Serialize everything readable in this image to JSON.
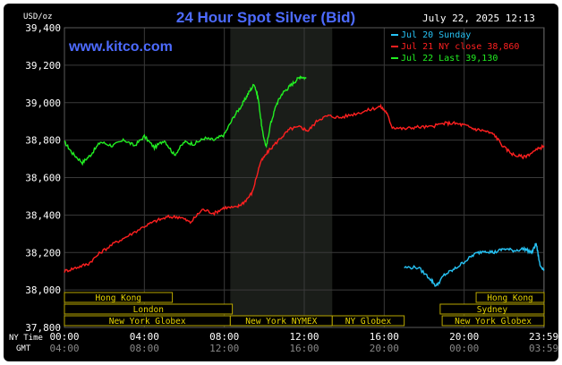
{
  "chart_data": {
    "type": "line",
    "title": "24 Hour Spot Silver (Bid)",
    "unit_label": "USD/oz",
    "date_label": "July 22, 2025 12:13",
    "brand": "www.kitco.com",
    "ylim": [
      37800,
      39400
    ],
    "y_ticks": [
      "39,400",
      "39,200",
      "39,000",
      "38,800",
      "38,600",
      "38,400",
      "38,200",
      "38,000",
      "37,800"
    ],
    "y_tick_values": [
      39400,
      39200,
      39000,
      38800,
      38600,
      38400,
      38200,
      38000,
      37800
    ],
    "xlim": [
      0,
      24
    ],
    "ny_time_label": "NY Time",
    "gmt_label": "GMT",
    "x_ticks_ny": [
      "00:00",
      "04:00",
      "08:00",
      "12:00",
      "16:00",
      "20:00",
      "23:59"
    ],
    "x_ticks_gmt": [
      "04:00",
      "08:00",
      "12:00",
      "16:00",
      "20:00",
      "00:00",
      "03:59"
    ],
    "x_tick_hours": [
      0,
      4,
      8,
      12,
      16,
      20,
      23.98
    ],
    "highlight_hours": [
      8.3,
      13.4
    ],
    "legend": [
      {
        "label": "Jul 20 Sunday",
        "color": "#27c3f5"
      },
      {
        "label": "Jul 21 NY close 38,860",
        "color": "#ff2020"
      },
      {
        "label": "Jul 22 Last 39,130",
        "color": "#22ee22"
      }
    ],
    "sessions": [
      {
        "label": "Hong Kong",
        "row": 0,
        "start": 0.0,
        "end": 5.4
      },
      {
        "label": "Hong Kong",
        "row": 0,
        "start": 20.6,
        "end": 24.0
      },
      {
        "label": "London",
        "row": 1,
        "start": 0.0,
        "end": 8.4
      },
      {
        "label": "Sydney",
        "row": 1,
        "start": 18.8,
        "end": 24.0
      },
      {
        "label": "New York Globex",
        "row": 2,
        "start": 0.0,
        "end": 8.3
      },
      {
        "label": "New York NYMEX",
        "row": 2,
        "start": 8.3,
        "end": 13.4
      },
      {
        "label": "NY Globex",
        "row": 2,
        "start": 13.4,
        "end": 17.0
      },
      {
        "label": "New York Globex",
        "row": 2,
        "start": 18.9,
        "end": 24.0
      }
    ],
    "series": [
      {
        "color": "#22ee22",
        "x": [
          0,
          0.4,
          0.9,
          1.3,
          1.8,
          2.4,
          3.0,
          3.5,
          4.0,
          4.5,
          5.0,
          5.5,
          6.0,
          6.5,
          7.0,
          7.5,
          8.0,
          8.5,
          8.9,
          9.2,
          9.5,
          9.7,
          9.9,
          10.1,
          10.3,
          10.6,
          10.9,
          11.2,
          11.5,
          11.8,
          12.1
        ],
        "y": [
          38790,
          38730,
          38680,
          38720,
          38790,
          38770,
          38800,
          38770,
          38820,
          38760,
          38800,
          38720,
          38790,
          38780,
          38810,
          38800,
          38830,
          38930,
          38990,
          39050,
          39100,
          39020,
          38850,
          38760,
          38880,
          38990,
          39050,
          39080,
          39110,
          39140,
          39130
        ]
      },
      {
        "color": "#ff2020",
        "x": [
          0,
          0.6,
          1.2,
          1.8,
          2.5,
          3.2,
          4.0,
          4.6,
          5.2,
          5.8,
          6.3,
          6.9,
          7.5,
          8.0,
          8.6,
          9.0,
          9.4,
          9.8,
          10.2,
          10.8,
          11.3,
          11.8,
          12.2,
          12.7,
          13.2,
          13.8,
          14.5,
          15.2,
          15.8,
          16.1,
          16.4,
          17.0,
          17.6,
          18.3,
          19.0,
          19.5,
          20.0,
          20.5,
          21.0,
          21.5,
          22.0,
          22.5,
          23.0,
          23.5,
          24.0
        ],
        "y": [
          38100,
          38120,
          38140,
          38200,
          38250,
          38290,
          38340,
          38370,
          38390,
          38390,
          38360,
          38430,
          38410,
          38440,
          38440,
          38470,
          38520,
          38680,
          38740,
          38810,
          38860,
          38870,
          38850,
          38910,
          38930,
          38920,
          38940,
          38960,
          38980,
          38950,
          38870,
          38860,
          38870,
          38870,
          38890,
          38890,
          38880,
          38860,
          38850,
          38830,
          38760,
          38720,
          38710,
          38740,
          38770
        ]
      },
      {
        "color": "#27c3f5",
        "x": [
          17.0,
          17.7,
          18.3,
          18.6,
          19.0,
          19.5,
          20.0,
          20.5,
          21.0,
          21.5,
          22.0,
          22.5,
          23.0,
          23.4,
          23.6,
          23.8,
          24.0
        ],
        "y": [
          38120,
          38120,
          38060,
          38020,
          38080,
          38110,
          38150,
          38190,
          38210,
          38200,
          38220,
          38210,
          38220,
          38200,
          38250,
          38130,
          38110
        ]
      }
    ]
  }
}
